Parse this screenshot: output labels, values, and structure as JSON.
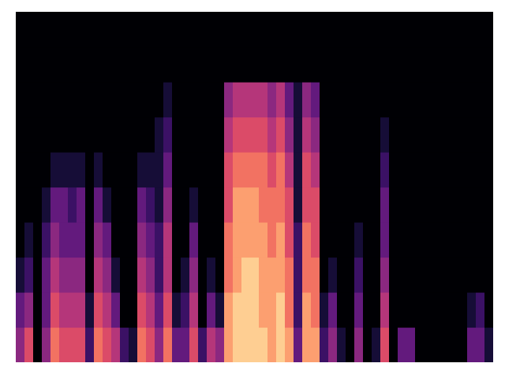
{
  "chart_data": {
    "type": "heatmap",
    "tick_labels": false,
    "zlim": [
      0,
      10
    ],
    "cells": [
      [
        4,
        3,
        1,
        0,
        0,
        0,
        0,
        0,
        0,
        0
      ],
      [
        6,
        4,
        2,
        1,
        0,
        0,
        0,
        0,
        0,
        0
      ],
      [
        0,
        0,
        0,
        0,
        0,
        0,
        0,
        0,
        0,
        0
      ],
      [
        4,
        3,
        3,
        2,
        1,
        0,
        0,
        0,
        0,
        0
      ],
      [
        7,
        6,
        5,
        4,
        3,
        1,
        0,
        0,
        0,
        0
      ],
      [
        6,
        5,
        4,
        3,
        3,
        1,
        0,
        0,
        0,
        0
      ],
      [
        6,
        5,
        4,
        3,
        2,
        1,
        0,
        0,
        0,
        0
      ],
      [
        6,
        5,
        4,
        3,
        3,
        1,
        0,
        0,
        0,
        0
      ],
      [
        2,
        1,
        0,
        0,
        0,
        0,
        0,
        0,
        0,
        0
      ],
      [
        7,
        6,
        5,
        4,
        3,
        1,
        0,
        0,
        0,
        0
      ],
      [
        6,
        5,
        4,
        3,
        1,
        0,
        0,
        0,
        0,
        0
      ],
      [
        5,
        3,
        1,
        0,
        0,
        0,
        0,
        0,
        0,
        0
      ],
      [
        2,
        0,
        0,
        0,
        0,
        0,
        0,
        0,
        0,
        0
      ],
      [
        1,
        0,
        0,
        0,
        0,
        0,
        0,
        0,
        0,
        0
      ],
      [
        7,
        6,
        5,
        4,
        3,
        1,
        0,
        0,
        0,
        0
      ],
      [
        6,
        5,
        4,
        3,
        2,
        1,
        0,
        0,
        0,
        0
      ],
      [
        4,
        3,
        2,
        2,
        1,
        1,
        1,
        0,
        0,
        0
      ],
      [
        7,
        6,
        5,
        5,
        4,
        3,
        2,
        1,
        0,
        0
      ],
      [
        3,
        1,
        0,
        0,
        0,
        0,
        0,
        0,
        0,
        0
      ],
      [
        3,
        2,
        1,
        0,
        0,
        0,
        0,
        0,
        0,
        0
      ],
      [
        6,
        5,
        4,
        3,
        1,
        0,
        0,
        0,
        0,
        0
      ],
      [
        2,
        0,
        0,
        0,
        0,
        0,
        0,
        0,
        0,
        0
      ],
      [
        5,
        3,
        1,
        0,
        0,
        0,
        0,
        0,
        0,
        0
      ],
      [
        4,
        1,
        0,
        0,
        0,
        0,
        0,
        0,
        0,
        0
      ],
      [
        8,
        8,
        7,
        7,
        6,
        6,
        5,
        4,
        0,
        0
      ],
      [
        9,
        9,
        8,
        8,
        8,
        7,
        6,
        5,
        0,
        0
      ],
      [
        9,
        9,
        9,
        8,
        8,
        7,
        6,
        5,
        0,
        0
      ],
      [
        9,
        9,
        9,
        8,
        8,
        7,
        6,
        5,
        0,
        0
      ],
      [
        9,
        8,
        8,
        8,
        7,
        7,
        6,
        5,
        0,
        0
      ],
      [
        8,
        8,
        8,
        7,
        7,
        6,
        5,
        4,
        0,
        0
      ],
      [
        9,
        9,
        8,
        8,
        7,
        7,
        6,
        5,
        0,
        0
      ],
      [
        8,
        7,
        7,
        6,
        6,
        5,
        4,
        3,
        0,
        0
      ],
      [
        3,
        2,
        2,
        2,
        1,
        1,
        1,
        1,
        0,
        0
      ],
      [
        8,
        8,
        7,
        7,
        6,
        6,
        5,
        4,
        0,
        0
      ],
      [
        8,
        7,
        7,
        6,
        6,
        5,
        4,
        3,
        0,
        0
      ],
      [
        2,
        1,
        0,
        0,
        0,
        0,
        0,
        0,
        0,
        0
      ],
      [
        4,
        3,
        1,
        0,
        0,
        0,
        0,
        0,
        0,
        0
      ],
      [
        1,
        0,
        0,
        0,
        0,
        0,
        0,
        0,
        0,
        0
      ],
      [
        0,
        0,
        0,
        0,
        0,
        0,
        0,
        0,
        0,
        0
      ],
      [
        4,
        3,
        2,
        1,
        0,
        0,
        0,
        0,
        0,
        0
      ],
      [
        0,
        0,
        0,
        0,
        0,
        0,
        0,
        0,
        0,
        0
      ],
      [
        1,
        0,
        0,
        0,
        0,
        0,
        0,
        0,
        0,
        0
      ],
      [
        6,
        5,
        4,
        3,
        3,
        2,
        1,
        0,
        0,
        0
      ],
      [
        0,
        0,
        0,
        0,
        0,
        0,
        0,
        0,
        0,
        0
      ],
      [
        3,
        0,
        0,
        0,
        0,
        0,
        0,
        0,
        0,
        0
      ],
      [
        3,
        0,
        0,
        0,
        0,
        0,
        0,
        0,
        0,
        0
      ],
      [
        0,
        0,
        0,
        0,
        0,
        0,
        0,
        0,
        0,
        0
      ],
      [
        0,
        0,
        0,
        0,
        0,
        0,
        0,
        0,
        0,
        0
      ],
      [
        0,
        0,
        0,
        0,
        0,
        0,
        0,
        0,
        0,
        0
      ],
      [
        0,
        0,
        0,
        0,
        0,
        0,
        0,
        0,
        0,
        0
      ],
      [
        0,
        0,
        0,
        0,
        0,
        0,
        0,
        0,
        0,
        0
      ],
      [
        0,
        0,
        0,
        0,
        0,
        0,
        0,
        0,
        0,
        0
      ],
      [
        3,
        1,
        0,
        0,
        0,
        0,
        0,
        0,
        0,
        0
      ],
      [
        3,
        2,
        0,
        0,
        0,
        0,
        0,
        0,
        0,
        0
      ],
      [
        1,
        0,
        0,
        0,
        0,
        0,
        0,
        0,
        0,
        0
      ]
    ]
  }
}
